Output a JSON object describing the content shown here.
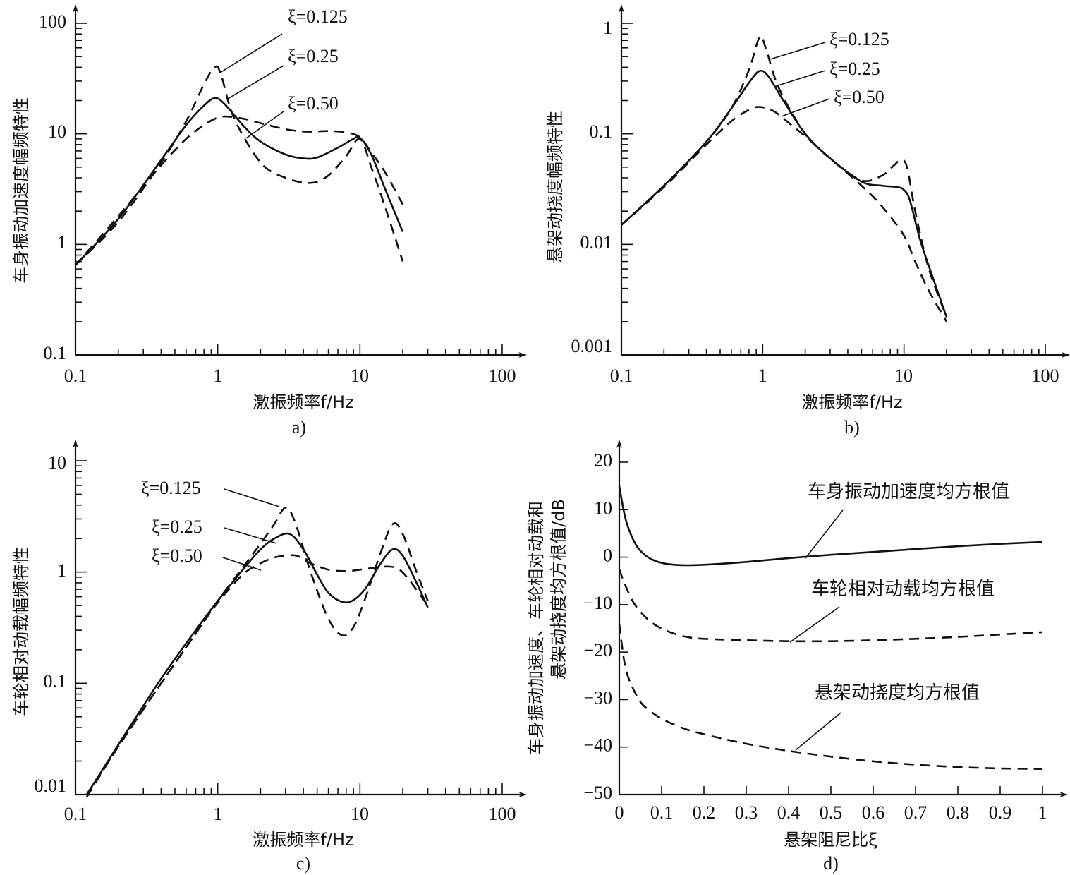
{
  "chart_data": [
    {
      "id": "a",
      "type": "line",
      "panel_label": "a)",
      "xlabel": "激振频率f/Hz",
      "ylabel": "车身振动加速度幅频特性",
      "xscale": "log",
      "yscale": "log",
      "xlim": [
        0.1,
        100
      ],
      "ylim": [
        0.1,
        100
      ],
      "xticks": [
        "0.1",
        "1",
        "10",
        "100"
      ],
      "yticks": [
        "0.1",
        "1",
        "10",
        "100"
      ],
      "series": [
        {
          "name": "ξ=0.125",
          "label": "ξ=0.125",
          "style": "dashed",
          "x": [
            0.1,
            0.2,
            0.4,
            0.6,
            0.8,
            0.95,
            1.05,
            1.3,
            2,
            3,
            4.5,
            6,
            8,
            10,
            12,
            15,
            20
          ],
          "y": [
            0.65,
            1.6,
            5.5,
            13,
            28,
            40,
            35,
            14,
            5.5,
            4.0,
            3.6,
            4.2,
            6.3,
            9.0,
            5.0,
            2.2,
            0.7
          ]
        },
        {
          "name": "ξ=0.25",
          "label": "ξ=0.25",
          "style": "solid",
          "x": [
            0.1,
            0.2,
            0.4,
            0.6,
            0.8,
            0.95,
            1.1,
            1.5,
            2,
            3,
            4,
            5,
            7,
            9,
            10,
            12,
            15,
            20
          ],
          "y": [
            0.65,
            1.7,
            5.8,
            12,
            18,
            21,
            19,
            12,
            8.5,
            6.5,
            6.0,
            6.1,
            7.5,
            9.0,
            9.2,
            6.5,
            3.2,
            1.3
          ]
        },
        {
          "name": "ξ=0.50",
          "label": "ξ=0.50",
          "style": "dashed",
          "x": [
            0.1,
            0.2,
            0.4,
            0.6,
            0.8,
            1.0,
            1.2,
            1.6,
            2,
            3,
            4,
            5,
            6,
            8,
            10,
            12,
            15,
            20
          ],
          "y": [
            0.65,
            1.8,
            5.2,
            9.0,
            12,
            14,
            14.3,
            13.5,
            12.5,
            11,
            10.5,
            10.5,
            10.6,
            10.3,
            9.3,
            6.8,
            4.5,
            2.3
          ]
        }
      ]
    },
    {
      "id": "b",
      "type": "line",
      "panel_label": "b)",
      "xlabel": "激振频率f/Hz",
      "ylabel": "悬架动挠度幅频特性",
      "xscale": "log",
      "yscale": "log",
      "xlim": [
        0.1,
        100
      ],
      "ylim": [
        0.001,
        1
      ],
      "xticks": [
        "0.1",
        "1",
        "10",
        "100"
      ],
      "yticks": [
        "0.001",
        "0.01",
        "0.1",
        "1"
      ],
      "series": [
        {
          "name": "ξ=0.125",
          "label": "ξ=0.125",
          "style": "dashed",
          "x": [
            0.1,
            0.2,
            0.4,
            0.6,
            0.8,
            0.95,
            1.05,
            1.3,
            2,
            3,
            5,
            7,
            8.5,
            9.5,
            10.5,
            12,
            15,
            20
          ],
          "y": [
            0.015,
            0.034,
            0.085,
            0.17,
            0.38,
            0.75,
            0.6,
            0.26,
            0.1,
            0.06,
            0.038,
            0.042,
            0.052,
            0.058,
            0.05,
            0.02,
            0.006,
            0.0022
          ]
        },
        {
          "name": "ξ=0.25",
          "label": "ξ=0.25",
          "style": "solid",
          "x": [
            0.1,
            0.2,
            0.4,
            0.6,
            0.8,
            0.95,
            1.1,
            1.4,
            2,
            3,
            5,
            7,
            9,
            10,
            11,
            13,
            16,
            20
          ],
          "y": [
            0.015,
            0.034,
            0.085,
            0.17,
            0.29,
            0.37,
            0.33,
            0.2,
            0.1,
            0.06,
            0.037,
            0.034,
            0.033,
            0.031,
            0.025,
            0.011,
            0.005,
            0.0022
          ]
        },
        {
          "name": "ξ=0.50",
          "label": "ξ=0.50",
          "style": "dashed",
          "x": [
            0.1,
            0.2,
            0.4,
            0.6,
            0.8,
            0.95,
            1.2,
            1.6,
            2,
            3,
            5,
            7,
            10,
            12,
            15,
            20
          ],
          "y": [
            0.015,
            0.033,
            0.08,
            0.13,
            0.165,
            0.175,
            0.16,
            0.12,
            0.095,
            0.06,
            0.034,
            0.022,
            0.012,
            0.007,
            0.0038,
            0.002
          ]
        }
      ]
    },
    {
      "id": "c",
      "type": "line",
      "panel_label": "c)",
      "xlabel": "激振频率f/Hz",
      "ylabel": "车轮相对动载幅频特性",
      "xscale": "log",
      "yscale": "log",
      "xlim": [
        0.1,
        100
      ],
      "ylim": [
        0.01,
        10
      ],
      "xticks": [
        "0.1",
        "1",
        "10",
        "100"
      ],
      "yticks": [
        "0.01",
        "0.1",
        "1",
        "10"
      ],
      "series": [
        {
          "name": "ξ=0.125",
          "label": "ξ=0.125",
          "style": "dashed",
          "x": [
            0.12,
            0.2,
            0.4,
            0.7,
            1,
            1.5,
            2,
            2.5,
            3.0,
            3.5,
            4.5,
            6,
            7.5,
            9,
            11,
            14,
            17,
            20,
            25,
            30
          ],
          "y": [
            0.01,
            0.027,
            0.1,
            0.28,
            0.55,
            1.1,
            1.8,
            2.7,
            3.8,
            2.8,
            1.0,
            0.38,
            0.27,
            0.32,
            0.6,
            1.5,
            2.7,
            2.2,
            1.0,
            0.55
          ]
        },
        {
          "name": "ξ=0.25",
          "label": "ξ=0.25",
          "style": "solid",
          "x": [
            0.12,
            0.2,
            0.4,
            0.7,
            1,
            1.5,
            2,
            2.5,
            3.2,
            4,
            5,
            6,
            7.5,
            9,
            11,
            14,
            17,
            20,
            25,
            30
          ],
          "y": [
            0.01,
            0.028,
            0.11,
            0.3,
            0.55,
            1.05,
            1.6,
            2.0,
            2.2,
            1.6,
            0.95,
            0.65,
            0.54,
            0.56,
            0.72,
            1.2,
            1.6,
            1.4,
            0.8,
            0.48
          ]
        },
        {
          "name": "ξ=0.50",
          "label": "ξ=0.50",
          "style": "dashed",
          "x": [
            0.12,
            0.2,
            0.4,
            0.7,
            1,
            1.5,
            2,
            2.5,
            3.0,
            3.6,
            4.5,
            6,
            8,
            10,
            13,
            16,
            19,
            23,
            30
          ],
          "y": [
            0.0095,
            0.027,
            0.1,
            0.28,
            0.53,
            0.95,
            1.2,
            1.35,
            1.4,
            1.4,
            1.2,
            1.05,
            1.02,
            1.05,
            1.1,
            1.12,
            1.05,
            0.8,
            0.5
          ]
        }
      ]
    },
    {
      "id": "d",
      "type": "line",
      "panel_label": "d)",
      "xlabel": "悬架阻尼比ξ",
      "ylabel_line1": "车身振动加速度、车轮相对动载和",
      "ylabel_line2": "悬架动挠度均方根值/dB",
      "xscale": "linear",
      "yscale": "linear",
      "xlim": [
        0,
        1
      ],
      "ylim": [
        -50,
        20
      ],
      "xticks": [
        "0",
        "0.1",
        "0.2",
        "0.3",
        "0.4",
        "0.5",
        "0.6",
        "0.7",
        "0.8",
        "0.9",
        "1"
      ],
      "yticks": [
        "-50",
        "-40",
        "-30",
        "-20",
        "-10",
        "0",
        "10",
        "20"
      ],
      "series": [
        {
          "name": "车身振动加速度均方根值",
          "label": "车身振动加速度均方根值",
          "style": "solid",
          "x": [
            0.0,
            0.01,
            0.02,
            0.04,
            0.06,
            0.08,
            0.1,
            0.13,
            0.16,
            0.2,
            0.3,
            0.4,
            0.5,
            0.6,
            0.7,
            0.8,
            0.9,
            1.0
          ],
          "y": [
            15,
            10,
            6.5,
            2.5,
            0.5,
            -0.6,
            -1.2,
            -1.6,
            -1.7,
            -1.6,
            -1.0,
            -0.2,
            0.5,
            1.1,
            1.7,
            2.3,
            2.8,
            3.2
          ]
        },
        {
          "name": "车轮相对动载均方根值",
          "label": "车轮相对动载均方根值",
          "style": "dashed",
          "x": [
            0.0,
            0.01,
            0.03,
            0.05,
            0.08,
            0.12,
            0.16,
            0.2,
            0.3,
            0.4,
            0.5,
            0.6,
            0.7,
            0.8,
            0.9,
            1.0
          ],
          "y": [
            -2.5,
            -5,
            -9,
            -11.5,
            -14,
            -15.8,
            -16.8,
            -17.2,
            -17.5,
            -17.7,
            -17.7,
            -17.5,
            -17.2,
            -16.8,
            -16.3,
            -15.8
          ]
        },
        {
          "name": "悬架动挠度均方根值",
          "label": "悬架动挠度均方根值",
          "style": "dashed",
          "x": [
            0.0,
            0.01,
            0.02,
            0.04,
            0.06,
            0.1,
            0.15,
            0.2,
            0.3,
            0.4,
            0.5,
            0.6,
            0.7,
            0.8,
            0.9,
            1.0
          ],
          "y": [
            -14,
            -21,
            -25,
            -29,
            -31.5,
            -34,
            -36,
            -37.3,
            -39.3,
            -40.8,
            -42,
            -43,
            -43.7,
            -44.2,
            -44.5,
            -44.6
          ]
        }
      ]
    }
  ]
}
